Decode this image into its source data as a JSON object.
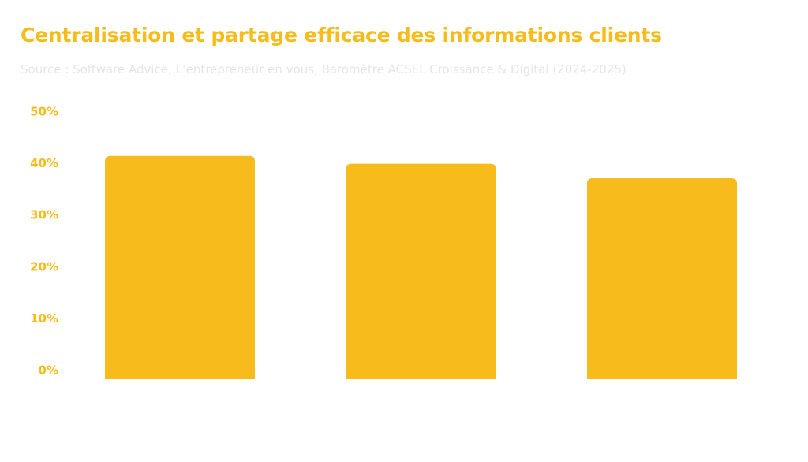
{
  "colors": {
    "accent": "#F7BB1B",
    "subtitle": "#E6E6E6",
    "bar": "#F7BB1B",
    "tick": "#F7BB1B"
  },
  "chart_data": {
    "type": "bar",
    "title": "Centralisation et partage efficace des informations clients",
    "subtitle": "Source : Software Advice, L’entrepreneur en vous, Baromètre ACSEL Croissance & Digital (2024-2025)",
    "categories": [
      "",
      "",
      ""
    ],
    "values": [
      41.5,
      40,
      37.2
    ],
    "ylim": [
      0,
      50
    ],
    "yticks": [
      0,
      10,
      20,
      30,
      40,
      50
    ],
    "ytick_labels": [
      "0%",
      "10%",
      "20%",
      "30%",
      "40%",
      "50%"
    ],
    "grid": false,
    "legend": "none"
  }
}
